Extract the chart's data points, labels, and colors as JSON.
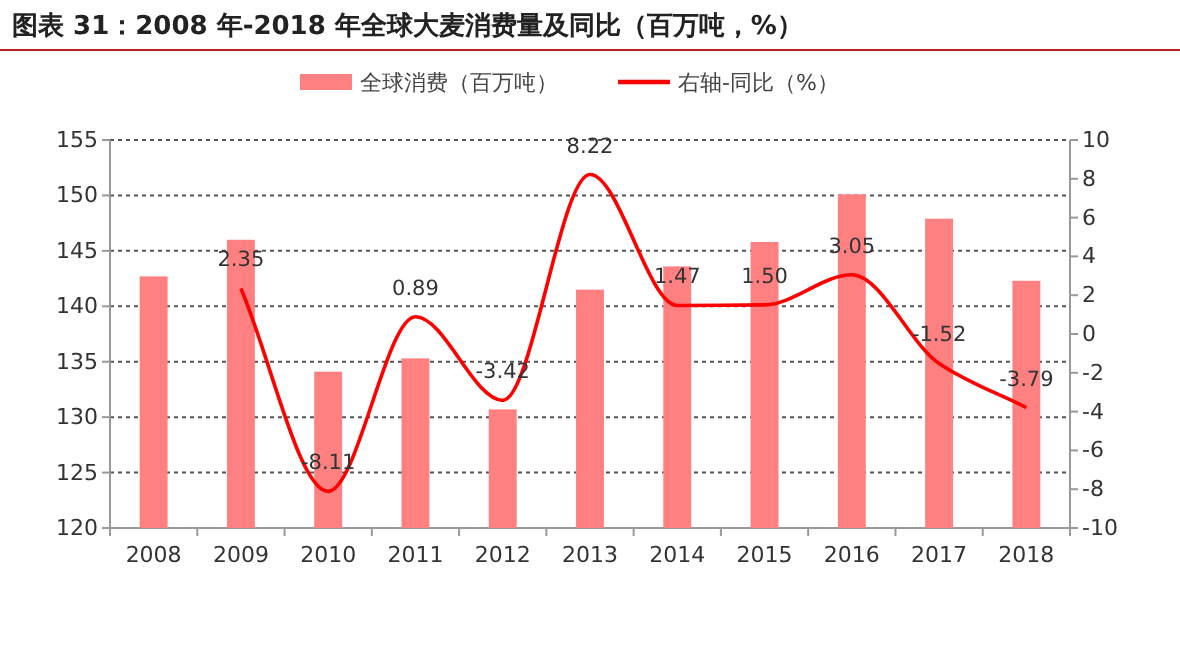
{
  "chart_data": {
    "type": "bar",
    "title": "图表 31：2008 年-2018 年全球大麦消费量及同比（百万吨，%）",
    "categories": [
      "2008",
      "2009",
      "2010",
      "2011",
      "2012",
      "2013",
      "2014",
      "2015",
      "2016",
      "2017",
      "2018"
    ],
    "series": [
      {
        "name": "全球消费（百万吨）",
        "color": "#ff8080",
        "values": [
          142.7,
          146.0,
          134.1,
          135.3,
          130.7,
          141.5,
          143.6,
          145.8,
          150.1,
          147.9,
          142.3
        ]
      },
      {
        "name": "右轴-同比（%）",
        "type": "line",
        "axis": "y2",
        "color": "#ff0000",
        "values": [
          null,
          2.35,
          -8.11,
          0.89,
          -3.42,
          8.22,
          1.47,
          1.5,
          3.05,
          -1.52,
          -3.79
        ],
        "value_labels": [
          null,
          "2.35",
          "-8.11",
          "0.89",
          "-3.42",
          "8.22",
          "1.47",
          "1.50",
          "3.05",
          "-1.52",
          "-3.79"
        ]
      }
    ],
    "ylim": [
      120,
      155
    ],
    "yticks": [
      120,
      125,
      130,
      135,
      140,
      145,
      150,
      155
    ],
    "y2lim": [
      -10,
      10
    ],
    "y2ticks": [
      -10,
      -8,
      -6,
      -4,
      -2,
      0,
      2,
      4,
      6,
      8,
      10
    ],
    "grid": "y",
    "legend": "top",
    "marker": "none",
    "line_style": "solid"
  }
}
